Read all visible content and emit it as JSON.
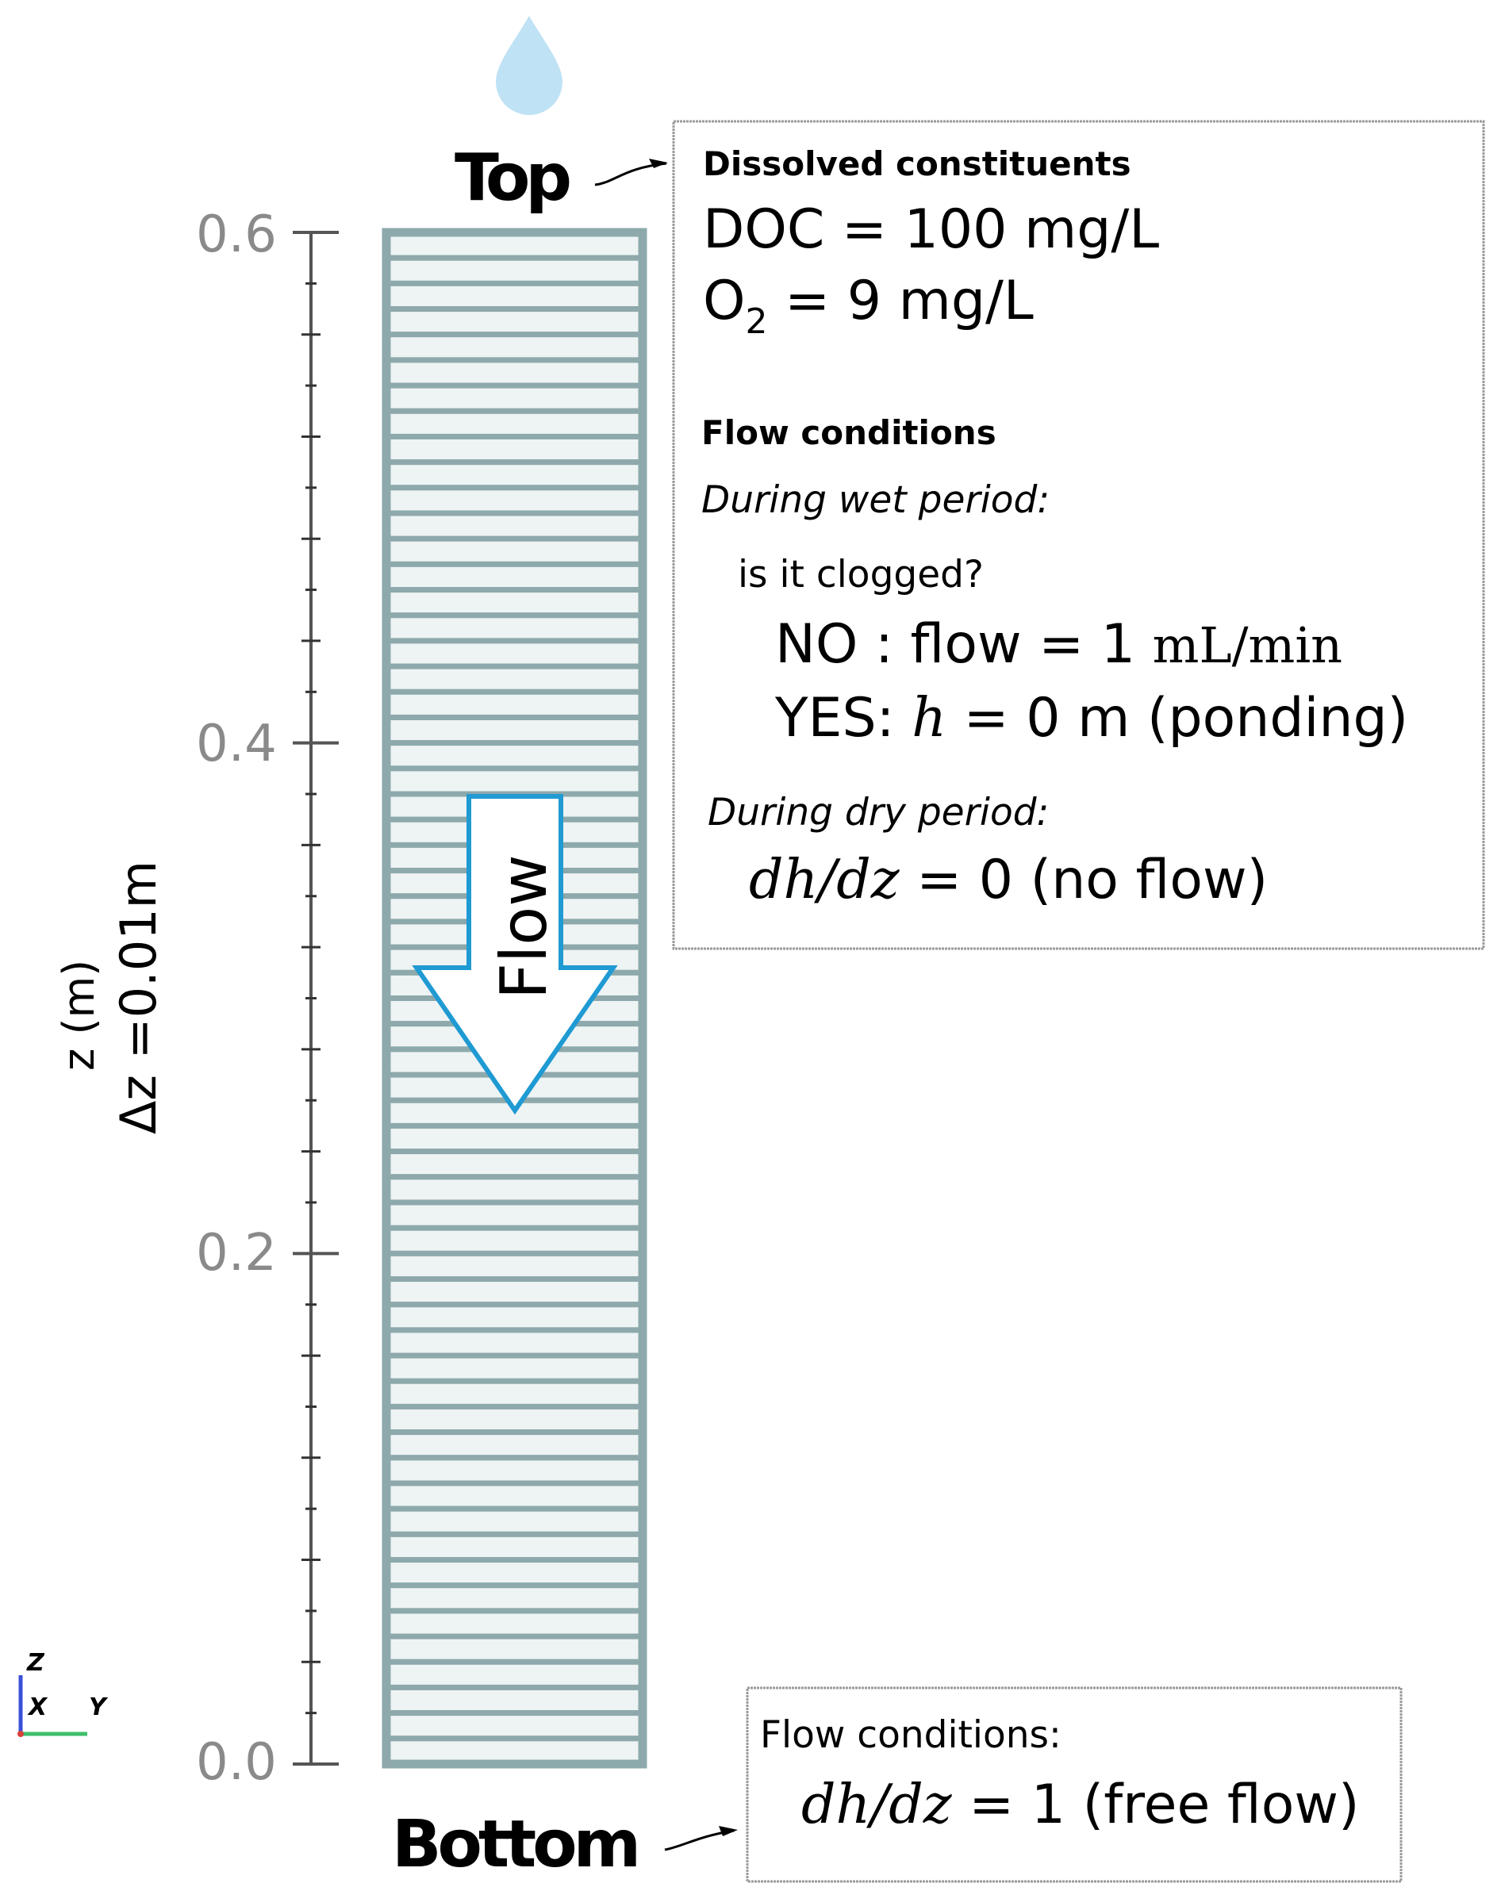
{
  "column": {
    "top_label": "Top",
    "bottom_label": "Bottom",
    "flow_arrow_label": "Flow",
    "axis_label": "z (m)",
    "spacing_label": "Δz =0.01m",
    "tick_labels": [
      "0.6",
      "0.4",
      "0.2",
      "0.0"
    ],
    "colors": {
      "column": "#8da9ab",
      "arrow": "#1f9ad3",
      "drop": "#bfe2f5"
    }
  },
  "top_box": {
    "dissolved_heading": "Dissolved constituents",
    "doc_line": "DOC = 100 mg/L",
    "o2_symbol": "O",
    "o2_sub": "2",
    "o2_rest": " = 9 mg/L",
    "flow_heading": "Flow conditions",
    "wet_heading": "During wet period:",
    "clogged_question": "is it clogged?",
    "no_prefix": "NO : flow = 1 ",
    "no_unit": "mL/min",
    "yes_prefix": "YES: ",
    "yes_var": "h",
    "yes_rest": " = 0 m (ponding)",
    "dry_heading": "During dry period:",
    "dry_var": "dh/dz",
    "dry_rest": " = 0 (no flow)"
  },
  "bottom_box": {
    "heading": "Flow conditions:",
    "var": "dh/dz",
    "rest": " = 1 (free flow)"
  },
  "orientation_axes": {
    "z": "Z",
    "x": "X",
    "y": "Y"
  }
}
